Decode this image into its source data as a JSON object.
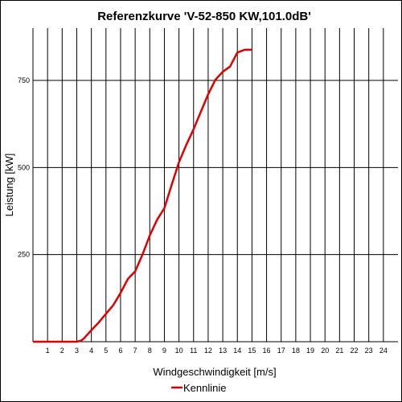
{
  "chart_data": {
    "type": "line",
    "title": "Referenzkurve 'V-52-850 KW,101.0dB'",
    "xlabel": "Windgeschwindigkeit [m/s]",
    "ylabel": "Leistung [kW]",
    "xlim": [
      0,
      25
    ],
    "ylim": [
      0,
      900
    ],
    "x_ticks": [
      1,
      2,
      3,
      4,
      5,
      6,
      7,
      8,
      9,
      10,
      11,
      12,
      13,
      14,
      15,
      16,
      17,
      18,
      19,
      20,
      21,
      22,
      23,
      24
    ],
    "y_ticks": [
      250,
      500,
      750
    ],
    "grid": true,
    "legend_position": "bottom-center",
    "series": [
      {
        "name": "Kennlinie",
        "color": "#e00000",
        "x": [
          0,
          1,
          2,
          3,
          3.3,
          3.5,
          4,
          4.5,
          5,
          5.5,
          6,
          6.5,
          7,
          7.5,
          8,
          8.5,
          9,
          9.5,
          10,
          10.5,
          11,
          11.5,
          12,
          12.5,
          13,
          13.5,
          14,
          14.5,
          15
        ],
        "y": [
          0,
          0,
          0,
          0,
          3,
          10,
          33,
          55,
          80,
          105,
          140,
          180,
          202,
          250,
          305,
          350,
          383,
          450,
          515,
          565,
          610,
          660,
          710,
          752,
          775,
          790,
          830,
          838,
          838
        ]
      }
    ]
  }
}
